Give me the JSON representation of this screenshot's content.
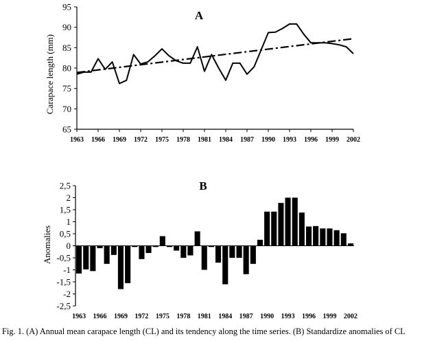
{
  "chart_data": [
    {
      "type": "line",
      "panel_label": "A",
      "ylabel": "Carapace length (mm)",
      "xlabel": "",
      "ylim": [
        65,
        95
      ],
      "yticks": [
        65,
        70,
        75,
        80,
        85,
        90,
        95
      ],
      "xticks": [
        1963,
        1966,
        1969,
        1972,
        1975,
        1978,
        1981,
        1984,
        1987,
        1990,
        1993,
        1996,
        1999,
        2002
      ],
      "xlim": [
        1963,
        2002
      ],
      "grid": false,
      "series": [
        {
          "style": "solid",
          "x": [
            1963,
            1964,
            1965,
            1966,
            1967,
            1968,
            1969,
            1970,
            1971,
            1972,
            1973,
            1974,
            1975,
            1976,
            1977,
            1978,
            1979,
            1980,
            1981,
            1982,
            1983,
            1984,
            1985,
            1986,
            1987,
            1988,
            1989,
            1990,
            1991,
            1992,
            1993,
            1994,
            1995,
            1996,
            1997,
            1998,
            1999,
            2000,
            2001,
            2002
          ],
          "values": [
            78.5,
            79,
            79,
            82.3,
            79.7,
            81.5,
            76.2,
            77,
            83.3,
            81,
            81.5,
            83,
            84.7,
            83,
            81.8,
            81.2,
            81.2,
            85.2,
            79.2,
            83.3,
            80,
            77,
            81.2,
            81.2,
            78.5,
            80.3,
            84.5,
            88.7,
            88.8,
            89.7,
            90.8,
            90.8,
            88.3,
            86.2,
            86.2,
            86.2,
            86,
            85.7,
            85.2,
            83.5
          ]
        },
        {
          "style": "dash-dot",
          "x": [
            1963,
            2002
          ],
          "values": [
            78.9,
            87.2
          ]
        }
      ]
    },
    {
      "type": "bar",
      "panel_label": "B",
      "ylabel": "Anomalies",
      "xlabel": "",
      "ylim": [
        -2.5,
        2.5
      ],
      "yticks": [
        "-2,5",
        "-2",
        "-1,5",
        "-1",
        "-0,5",
        "0",
        "0,5",
        "1",
        "1,5",
        "2",
        "2,5"
      ],
      "ytick_values": [
        -2.5,
        -2,
        -1.5,
        -1,
        -0.5,
        0,
        0.5,
        1,
        1.5,
        2,
        2.5
      ],
      "xticks": [
        1963,
        1966,
        1969,
        1972,
        1975,
        1978,
        1981,
        1984,
        1987,
        1990,
        1993,
        1996,
        1999,
        2002
      ],
      "grid": false,
      "x": [
        1963,
        1964,
        1965,
        1966,
        1967,
        1968,
        1969,
        1970,
        1971,
        1972,
        1973,
        1974,
        1975,
        1976,
        1977,
        1978,
        1979,
        1980,
        1981,
        1982,
        1983,
        1984,
        1985,
        1986,
        1987,
        1988,
        1989,
        1990,
        1991,
        1992,
        1993,
        1994,
        1995,
        1996,
        1997,
        1998,
        1999,
        2000,
        2001,
        2002
      ],
      "values": [
        -1.15,
        -0.98,
        -1.05,
        -0.1,
        -0.75,
        -0.38,
        -1.8,
        -1.55,
        -0.05,
        -0.55,
        -0.3,
        -0.05,
        0.4,
        -0.05,
        -0.2,
        -0.5,
        -0.4,
        0.6,
        -1.0,
        -0.05,
        -0.7,
        -1.6,
        -0.5,
        -0.5,
        -1.18,
        -0.75,
        0.25,
        1.42,
        1.42,
        1.78,
        2.0,
        2.0,
        1.38,
        0.8,
        0.82,
        0.72,
        0.72,
        0.65,
        0.52,
        0.1
      ]
    }
  ],
  "caption": "Fig. 1. (A) Annual mean carapace length (CL) and its tendency along the time series. (B) Standardize anomalies of CL"
}
